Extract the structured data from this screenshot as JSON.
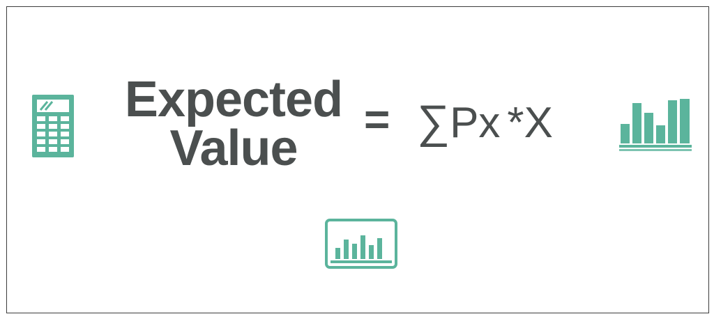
{
  "formula": {
    "title_line1": "Expected",
    "title_line2": "Value",
    "equals": "=",
    "sigma": "∑",
    "px": "Px",
    "times": "*",
    "x": "X"
  },
  "colors": {
    "accent": "#5bb49c",
    "text": "#4b4f4f",
    "border": "#3c3c3c"
  },
  "icons": [
    "calculator-icon",
    "bar-chart-icon",
    "chart-monitor-icon"
  ]
}
